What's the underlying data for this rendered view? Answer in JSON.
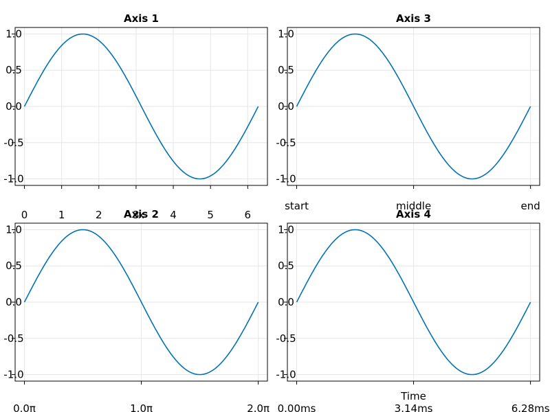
{
  "chart_data": [
    {
      "type": "line",
      "title": "Axis 1",
      "xlabel": "x",
      "ylabel": "",
      "xlim": [
        -0.25,
        6.53
      ],
      "ylim": [
        -1.09,
        1.09
      ],
      "xticks": [
        0,
        1,
        2,
        3,
        4,
        5,
        6
      ],
      "xtick_labels": [
        "0",
        "1",
        "2",
        "3",
        "4",
        "5",
        "6"
      ],
      "yticks": [
        -1.0,
        -0.5,
        0.0,
        0.5,
        1.0
      ],
      "ytick_labels": [
        "-1.0",
        "-0.5",
        "0.0",
        "0.5",
        "1.0"
      ],
      "grid": true,
      "function": "sin",
      "x_range": [
        0,
        6.2832
      ],
      "series": [
        {
          "color": "#0072b2"
        }
      ]
    },
    {
      "type": "line",
      "title": "Axis 2",
      "xlabel": "",
      "ylabel": "",
      "xlim": [
        -0.25,
        6.53
      ],
      "ylim": [
        -1.09,
        1.09
      ],
      "xticks": [
        0,
        3.1416,
        6.2832
      ],
      "xtick_labels": [
        "0.0π",
        "1.0π",
        "2.0π"
      ],
      "yticks": [
        -1.0,
        -0.5,
        0.0,
        0.5,
        1.0
      ],
      "ytick_labels": [
        "-1.0",
        "-0.5",
        "0.0",
        "0.5",
        "1.0"
      ],
      "grid": true,
      "function": "sin",
      "x_range": [
        0,
        6.2832
      ],
      "series": [
        {
          "color": "#0072b2"
        }
      ]
    },
    {
      "type": "line",
      "title": "Axis 3",
      "xlabel": "",
      "ylabel": "",
      "xlim": [
        -0.25,
        6.53
      ],
      "ylim": [
        -1.09,
        1.09
      ],
      "xticks": [
        0,
        3.1416,
        6.2832
      ],
      "xtick_labels": [
        "start",
        "middle",
        "end"
      ],
      "yticks": [
        -1.0,
        -0.5,
        0.0,
        0.5,
        1.0
      ],
      "ytick_labels": [
        "-1.0",
        "-0.5",
        "0.0",
        "0.5",
        "1.0"
      ],
      "grid": true,
      "function": "sin",
      "x_range": [
        0,
        6.2832
      ],
      "series": [
        {
          "color": "#0072b2"
        }
      ]
    },
    {
      "type": "line",
      "title": "Axis 4",
      "xlabel": "Time",
      "ylabel": "",
      "xlim": [
        -0.25,
        6.53
      ],
      "ylim": [
        -1.09,
        1.09
      ],
      "xticks": [
        0,
        3.1416,
        6.2832
      ],
      "xtick_labels": [
        "0.00ms",
        "3.14ms",
        "6.28ms"
      ],
      "yticks": [
        -1.0,
        -0.5,
        0.0,
        0.5,
        1.0
      ],
      "ytick_labels": [
        "-1.0",
        "-0.5",
        "0.0",
        "0.5",
        "1.0"
      ],
      "grid": true,
      "function": "sin",
      "x_range": [
        0,
        6.2832
      ],
      "series": [
        {
          "color": "#0072b2"
        }
      ]
    }
  ]
}
